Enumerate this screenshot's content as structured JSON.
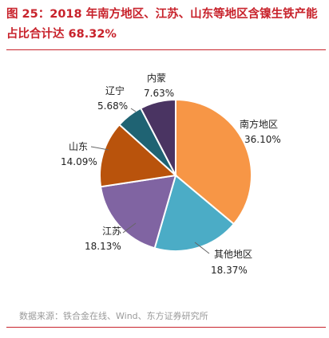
{
  "title": "图 25：2018 年南方地区、江苏、山东等地区含镍生铁产能占比合计达 68.32%",
  "source": "数据来源：铁合金在线、Wind、东方证券研究所",
  "chart_data": {
    "type": "pie",
    "slices": [
      {
        "name": "南方地区",
        "value": 36.1,
        "label": "36.10%",
        "color": "#F79646"
      },
      {
        "name": "其他地区",
        "value": 18.37,
        "label": "18.37%",
        "color": "#4BACC6"
      },
      {
        "name": "江苏",
        "value": 18.13,
        "label": "18.13%",
        "color": "#8064A2"
      },
      {
        "name": "山东",
        "value": 14.09,
        "label": "14.09%",
        "color": "#B9530C"
      },
      {
        "name": "辽宁",
        "value": 5.68,
        "label": "5.68%",
        "color": "#1F6373"
      },
      {
        "name": "内蒙",
        "value": 7.63,
        "label": "7.63%",
        "color": "#4A3462"
      }
    ]
  }
}
